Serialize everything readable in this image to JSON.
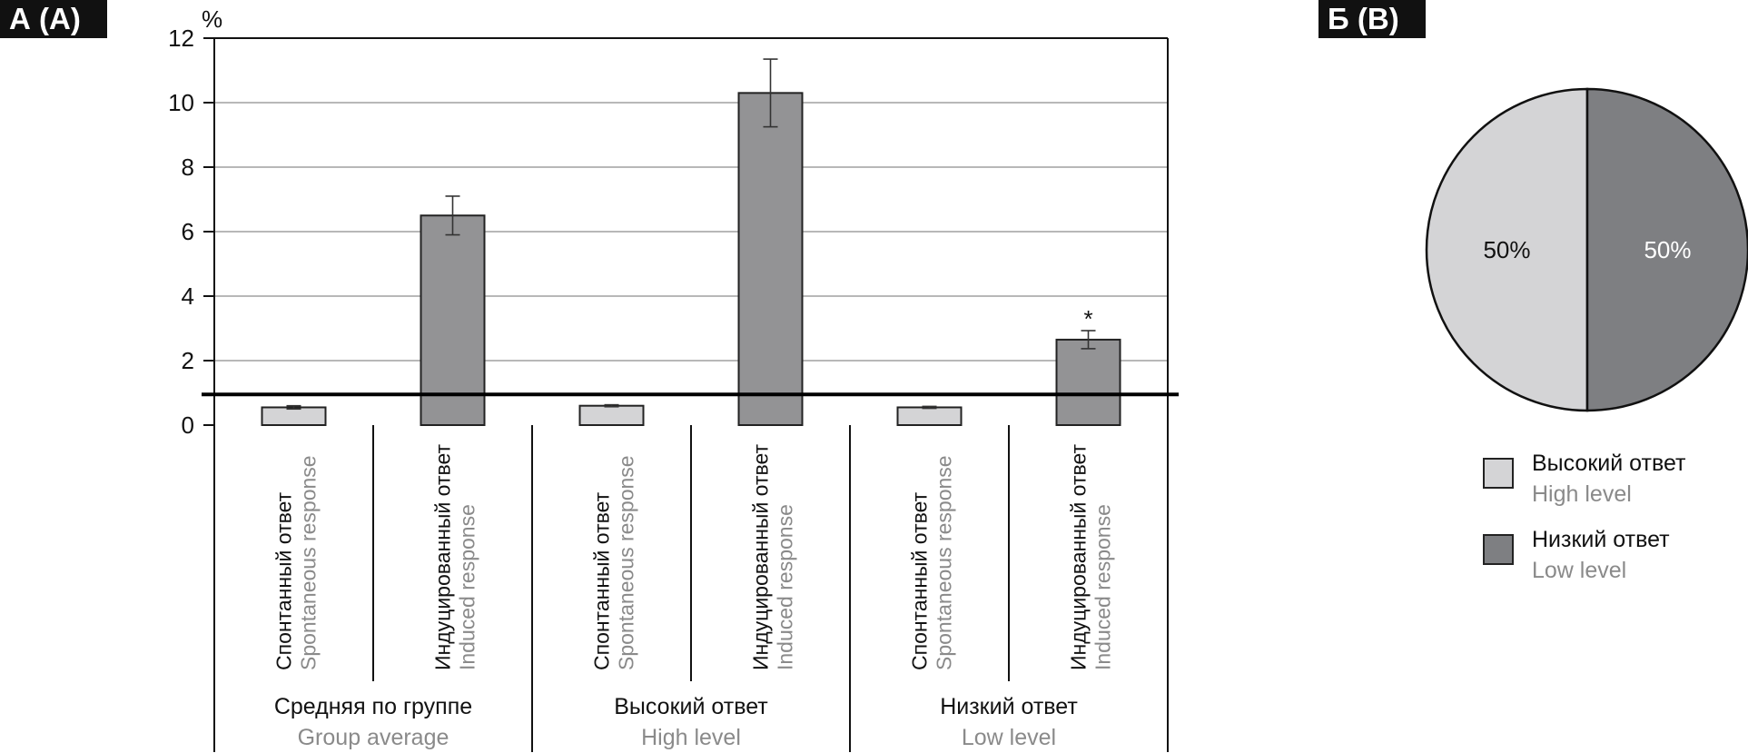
{
  "panel_a": {
    "label": "А (A)",
    "chart_data": {
      "type": "bar",
      "y_unit_label": "%",
      "ylim": [
        0,
        12
      ],
      "yticks": [
        0,
        2,
        4,
        6,
        8,
        10,
        12
      ],
      "grid": "horizontal",
      "reference_line": 0.95,
      "bars": [
        {
          "ru": "Спонтанный ответ",
          "en": "Spontaneous response",
          "value": 0.55,
          "error": 0.05,
          "kind": "spontaneous",
          "annotation": ""
        },
        {
          "ru": "Индуцированный ответ",
          "en": "Induced response",
          "value": 6.5,
          "error": 0.6,
          "kind": "induced",
          "annotation": ""
        },
        {
          "ru": "Спонтанный ответ",
          "en": "Spontaneous response",
          "value": 0.6,
          "error": 0.03,
          "kind": "spontaneous",
          "annotation": ""
        },
        {
          "ru": "Индуцированный ответ",
          "en": "Induced response",
          "value": 10.3,
          "error": 1.05,
          "kind": "induced",
          "annotation": ""
        },
        {
          "ru": "Спонтанный ответ",
          "en": "Spontaneous response",
          "value": 0.55,
          "error": 0.03,
          "kind": "spontaneous",
          "annotation": ""
        },
        {
          "ru": "Индуцированный ответ",
          "en": "Induced response",
          "value": 2.65,
          "error": 0.28,
          "kind": "induced",
          "annotation": "*"
        }
      ],
      "groups": [
        {
          "ru": "Средняя по группе",
          "en": "Group average"
        },
        {
          "ru": "Высокий ответ",
          "en": "High level"
        },
        {
          "ru": "Низкий ответ",
          "en": "Low level"
        }
      ]
    }
  },
  "panel_b": {
    "label": "Б (B)",
    "chart_data": {
      "type": "pie",
      "slices": [
        {
          "label_ru": "Высокий ответ",
          "label_en": "High level",
          "value": 50,
          "text": "50%",
          "color": "#d4d4d6"
        },
        {
          "label_ru": "Низкий ответ",
          "label_en": "Low level",
          "value": 50,
          "text": "50%",
          "color": "#7e7f82"
        }
      ]
    }
  },
  "colors": {
    "spontaneous": "#d4d4d6",
    "induced": "#939395",
    "grid": "#a0a0a0",
    "axis": "#111111",
    "english_text": "#8a8a8a"
  }
}
